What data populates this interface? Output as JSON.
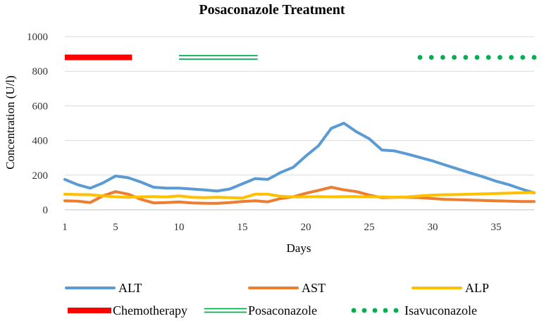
{
  "chart_data": {
    "type": "line",
    "title": "Posaconazole Treatment",
    "xlabel": "Days",
    "ylabel": "Concentration (U/l)",
    "xlim": [
      1,
      38
    ],
    "ylim": [
      0,
      1000
    ],
    "x_ticks": [
      1,
      5,
      10,
      15,
      20,
      25,
      30,
      35
    ],
    "y_ticks": [
      0,
      200,
      400,
      600,
      800,
      1000
    ],
    "grid": "horizontal",
    "legend_position": "bottom",
    "x": [
      1,
      2,
      3,
      4,
      5,
      6,
      7,
      8,
      9,
      10,
      11,
      12,
      13,
      14,
      15,
      16,
      17,
      18,
      19,
      20,
      21,
      22,
      23,
      24,
      25,
      26,
      27,
      28,
      29,
      30,
      31,
      32,
      33,
      34,
      35,
      36,
      37,
      38
    ],
    "series": [
      {
        "name": "ALT",
        "color": "#5B9BD5",
        "values": [
          175,
          145,
          125,
          155,
          195,
          185,
          160,
          130,
          125,
          125,
          120,
          115,
          108,
          120,
          150,
          180,
          175,
          215,
          245,
          310,
          370,
          470,
          500,
          450,
          410,
          345,
          340,
          322,
          302,
          282,
          258,
          235,
          212,
          190,
          165,
          145,
          120,
          98
        ]
      },
      {
        "name": "AST",
        "color": "#ED7D31",
        "values": [
          52,
          50,
          42,
          80,
          105,
          90,
          60,
          40,
          42,
          45,
          40,
          38,
          37,
          42,
          48,
          52,
          46,
          65,
          75,
          95,
          112,
          130,
          115,
          105,
          85,
          70,
          72,
          72,
          70,
          65,
          60,
          58,
          56,
          54,
          52,
          50,
          48,
          48
        ]
      },
      {
        "name": "ALP",
        "color": "#FFC000",
        "values": [
          90,
          88,
          87,
          80,
          75,
          72,
          75,
          76,
          74,
          80,
          72,
          70,
          72,
          70,
          68,
          90,
          90,
          78,
          75,
          75,
          76,
          75,
          76,
          76,
          75,
          75,
          72,
          74,
          80,
          85,
          87,
          88,
          90,
          92,
          94,
          96,
          98,
          100
        ]
      }
    ],
    "treatments": [
      {
        "name": "Chemotherapy",
        "color": "#FF0000",
        "style": "thick",
        "x_start": 1,
        "x_end": 6.3,
        "y": 880
      },
      {
        "name": "Posaconazole",
        "color": "#00B050",
        "style": "double",
        "x_start": 10,
        "x_end": 16.2,
        "y": 880
      },
      {
        "name": "Isavuconazole",
        "color": "#00B050",
        "style": "dotted",
        "x_start": 29,
        "x_end": 38,
        "y": 880
      }
    ]
  }
}
